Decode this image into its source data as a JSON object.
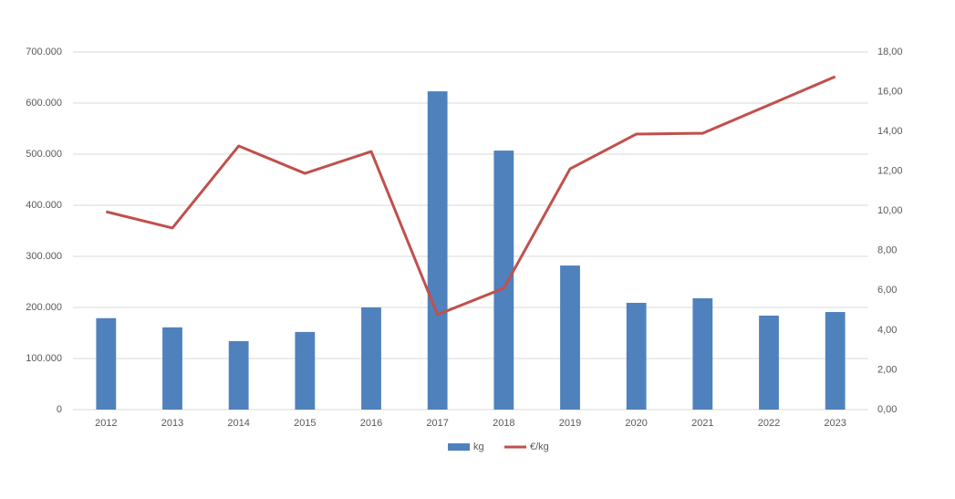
{
  "chart_data": {
    "type": "bar",
    "categories": [
      "2012",
      "2013",
      "2014",
      "2015",
      "2016",
      "2017",
      "2018",
      "2019",
      "2020",
      "2021",
      "2022",
      "2023"
    ],
    "series": [
      {
        "name": "kg",
        "color": "#4f81bd",
        "values": [
          179000,
          161000,
          134000,
          152000,
          200000,
          623000,
          507000,
          282000,
          209000,
          218000,
          184000,
          191000
        ]
      },
      {
        "name": "€/kg",
        "type": "line",
        "axis": "y2",
        "color": "#c0504d",
        "values": [
          9.96,
          9.14,
          13.27,
          11.89,
          12.99,
          4.78,
          6.11,
          12.12,
          13.87,
          13.91,
          15.33,
          16.76
        ]
      }
    ],
    "ylim": [
      0,
      700000
    ],
    "yticks": [
      0,
      {
        "value": 100000,
        "label": "100.000"
      },
      {
        "value": 200000,
        "label": "200.000"
      },
      {
        "value": 300000,
        "label": "300.000"
      },
      {
        "value": 400000,
        "label": "400.000"
      },
      {
        "value": 500000,
        "label": "500.000"
      },
      {
        "value": 600000,
        "label": "600.000"
      },
      {
        "value": 700000,
        "label": "700.000"
      }
    ],
    "y2lim": [
      0,
      18
    ],
    "y2ticks": [
      {
        "value": 0,
        "label": "0,00"
      },
      {
        "value": 2,
        "label": "2,00"
      },
      {
        "value": 4,
        "label": "4,00"
      },
      {
        "value": 6,
        "label": "6,00"
      },
      {
        "value": 8,
        "label": "8,00"
      },
      {
        "value": 10,
        "label": "10,00"
      },
      {
        "value": 12,
        "label": "12,00"
      },
      {
        "value": 14,
        "label": "14,00"
      },
      {
        "value": 16,
        "label": "16,00"
      },
      {
        "value": 18,
        "label": "18,00"
      }
    ],
    "grid": true,
    "legend": "bottom"
  }
}
